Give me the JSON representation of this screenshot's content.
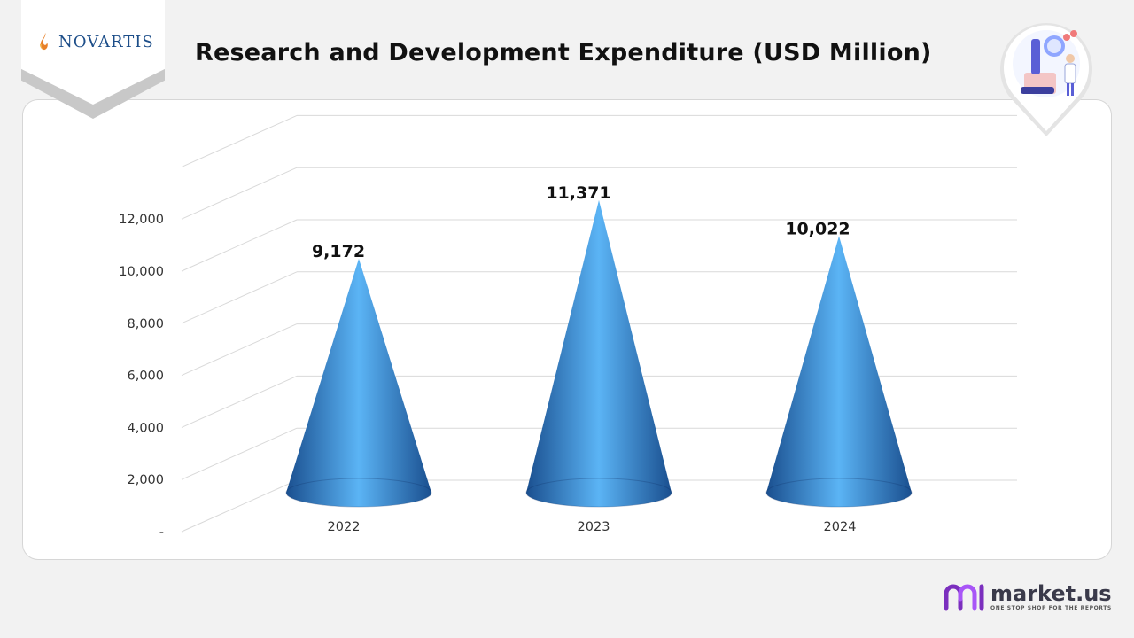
{
  "header": {
    "brand": "NOVARTIS",
    "title": "Research and Development  Expenditure (USD Million)"
  },
  "footer": {
    "brand": "market.us",
    "tagline": "ONE STOP SHOP FOR THE REPORTS"
  },
  "colors": {
    "cone": "#2f7fd0",
    "cone_light": "#5bb4f5",
    "cone_dark": "#1a4f8f",
    "gridline": "#d9d9d9",
    "brand_blue": "#1d4e89",
    "brand_orange": "#e8812a",
    "footer_purple": "#7b2fbe"
  },
  "icons": {
    "logo": "novartis-flame-icon",
    "pin": "lab-scientist-icon",
    "footer": "market-us-icon"
  },
  "chart_data": {
    "type": "bar",
    "style": "3d-cone",
    "categories": [
      "2022",
      "2023",
      "2024"
    ],
    "values": [
      9172,
      11371,
      10022
    ],
    "data_labels": [
      "9,172",
      "11,371",
      "10,022"
    ],
    "ylim": [
      0,
      14000
    ],
    "yticks": [
      0,
      2000,
      4000,
      6000,
      8000,
      10000,
      12000
    ],
    "ytick_labels": [
      "-",
      "2,000",
      "4,000",
      "6,000",
      "8,000",
      "10,000",
      "12,000"
    ],
    "grid": true,
    "legend": "none",
    "xlabel": "",
    "ylabel": ""
  }
}
